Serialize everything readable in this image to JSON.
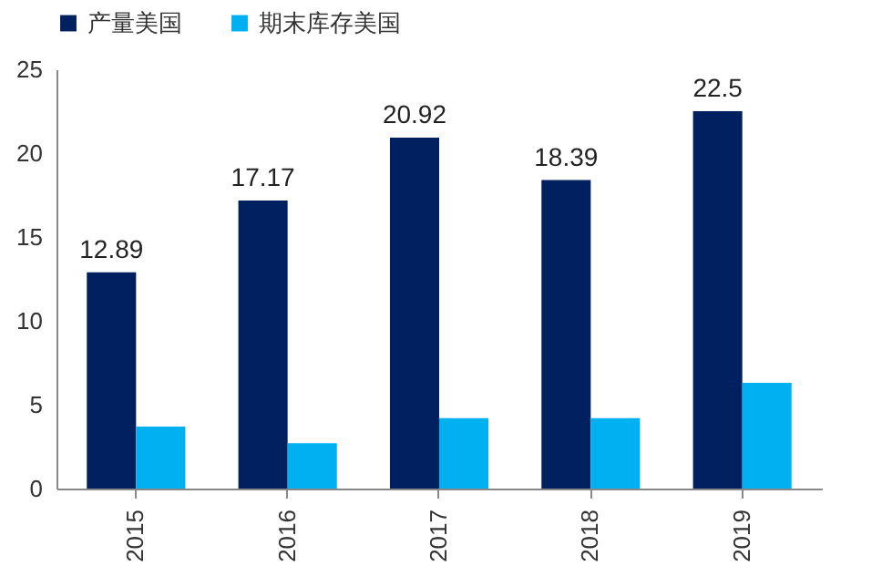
{
  "chart_data": {
    "type": "bar",
    "categories": [
      "2015",
      "2016",
      "2017",
      "2018",
      "2019"
    ],
    "series": [
      {
        "name": "产量美国",
        "color": "#002060",
        "values": [
          12.89,
          17.17,
          20.92,
          18.39,
          22.5
        ],
        "value_labels": [
          "12.89",
          "17.17",
          "20.92",
          "18.39",
          "22.5"
        ]
      },
      {
        "name": "期末库存美国",
        "color": "#00b0f0",
        "values": [
          3.7,
          2.7,
          4.2,
          4.2,
          6.3
        ]
      }
    ],
    "ylim": [
      0,
      25
    ],
    "yticks": [
      0,
      5,
      10,
      15,
      20,
      25
    ],
    "grid": false,
    "legend": "top"
  }
}
